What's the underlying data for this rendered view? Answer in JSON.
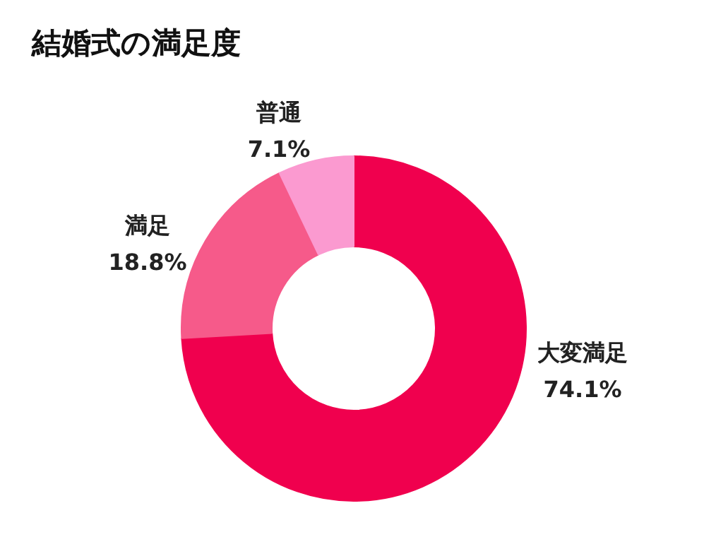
{
  "chart_data": {
    "type": "donut",
    "title": "結婚式の満足度",
    "categories": [
      "大変満足",
      "満足",
      "普通"
    ],
    "values": [
      74.1,
      18.8,
      7.1
    ],
    "colors": [
      "#f0004e",
      "#f65a8a",
      "#fb9ad0"
    ],
    "value_labels": [
      "74.1%",
      "18.8%",
      "7.1%"
    ]
  }
}
